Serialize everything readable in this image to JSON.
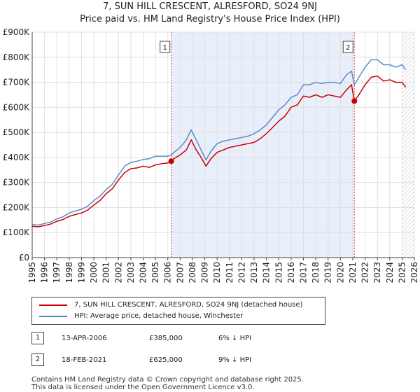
{
  "title_line1": "7, SUN HILL CRESCENT, ALRESFORD, SO24 9NJ",
  "title_line2": "Price paid vs. HM Land Registry's House Price Index (HPI)",
  "legend": {
    "property_label": "7, SUN HILL CRESCENT, ALRESFORD, SO24 9NJ (detached house)",
    "hpi_label": "HPI: Average price, detached house, Winchester"
  },
  "transactions": [
    {
      "num": "1",
      "date": "13-APR-2006",
      "price": "£385,000",
      "hpi_diff": "6% ↓ HPI"
    },
    {
      "num": "2",
      "date": "18-FEB-2021",
      "price": "£625,000",
      "hpi_diff": "9% ↓ HPI"
    }
  ],
  "footer_line1": "Contains HM Land Registry data © Crown copyright and database right 2025.",
  "footer_line2": "This data is licensed under the Open Government Licence v3.0.",
  "colors": {
    "property": "#cc0000",
    "hpi": "#5b8cc8",
    "shade": "#e8eefa",
    "marker_line": "#dd4444"
  },
  "chart_data": {
    "type": "line",
    "title": "7, SUN HILL CRESCENT, ALRESFORD, SO24 9NJ — Price paid vs. HM Land Registry's House Price Index (HPI)",
    "xlabel": "",
    "ylabel": "",
    "xlim": [
      1995,
      2026
    ],
    "ylim": [
      0,
      900000
    ],
    "x_ticks": [
      1995,
      1996,
      1997,
      1998,
      1999,
      2000,
      2001,
      2002,
      2003,
      2004,
      2005,
      2006,
      2007,
      2008,
      2009,
      2010,
      2011,
      2012,
      2013,
      2014,
      2015,
      2016,
      2017,
      2018,
      2019,
      2020,
      2021,
      2022,
      2023,
      2024,
      2025,
      2026
    ],
    "y_ticks": [
      0,
      100000,
      200000,
      300000,
      400000,
      500000,
      600000,
      700000,
      800000,
      900000
    ],
    "y_tick_labels": [
      "£0",
      "£100K",
      "£200K",
      "£300K",
      "£400K",
      "£500K",
      "£600K",
      "£700K",
      "£800K",
      "£900K"
    ],
    "grid": true,
    "legend_position": "below",
    "shaded_region": [
      2006.28,
      2021.13
    ],
    "projection_start": 2025.0,
    "annotations": [
      {
        "label": "1",
        "x": 2006.28,
        "y": 385000
      },
      {
        "label": "2",
        "x": 2021.13,
        "y": 625000
      }
    ],
    "series": [
      {
        "name": "7, SUN HILL CRESCENT, ALRESFORD, SO24 9NJ (detached house)",
        "x": [
          1995.0,
          1995.5,
          1996.0,
          1996.5,
          1997.0,
          1997.5,
          1998.0,
          1998.5,
          1999.0,
          1999.5,
          2000.0,
          2000.5,
          2001.0,
          2001.5,
          2002.0,
          2002.5,
          2003.0,
          2003.5,
          2004.0,
          2004.5,
          2005.0,
          2005.5,
          2006.0,
          2006.28,
          2006.5,
          2007.0,
          2007.5,
          2007.9,
          2008.3,
          2008.7,
          2009.1,
          2009.5,
          2010.0,
          2010.5,
          2011.0,
          2011.5,
          2012.0,
          2012.5,
          2013.0,
          2013.5,
          2014.0,
          2014.5,
          2015.0,
          2015.5,
          2016.0,
          2016.5,
          2017.0,
          2017.5,
          2018.0,
          2018.5,
          2019.0,
          2019.5,
          2020.0,
          2020.5,
          2020.9,
          2021.13,
          2021.5,
          2022.0,
          2022.5,
          2023.0,
          2023.5,
          2024.0,
          2024.5,
          2025.0,
          2025.3
        ],
        "values": [
          125000,
          123000,
          128000,
          134000,
          145000,
          152000,
          165000,
          172000,
          178000,
          190000,
          210000,
          228000,
          255000,
          275000,
          310000,
          340000,
          355000,
          358000,
          365000,
          360000,
          370000,
          375000,
          378000,
          385000,
          395000,
          410000,
          430000,
          470000,
          430000,
          400000,
          365000,
          395000,
          420000,
          430000,
          440000,
          445000,
          450000,
          455000,
          460000,
          475000,
          495000,
          520000,
          545000,
          565000,
          600000,
          610000,
          645000,
          640000,
          650000,
          640000,
          650000,
          645000,
          640000,
          670000,
          690000,
          625000,
          650000,
          690000,
          720000,
          725000,
          705000,
          710000,
          700000,
          700000,
          680000
        ]
      },
      {
        "name": "HPI: Average price, detached house, Winchester",
        "x": [
          1995.0,
          1995.5,
          1996.0,
          1996.5,
          1997.0,
          1997.5,
          1998.0,
          1998.5,
          1999.0,
          1999.5,
          2000.0,
          2000.5,
          2001.0,
          2001.5,
          2002.0,
          2002.5,
          2003.0,
          2003.5,
          2004.0,
          2004.5,
          2005.0,
          2005.5,
          2006.0,
          2006.28,
          2006.5,
          2007.0,
          2007.5,
          2007.9,
          2008.3,
          2008.7,
          2009.1,
          2009.5,
          2010.0,
          2010.5,
          2011.0,
          2011.5,
          2012.0,
          2012.5,
          2013.0,
          2013.5,
          2014.0,
          2014.5,
          2015.0,
          2015.5,
          2016.0,
          2016.5,
          2017.0,
          2017.5,
          2018.0,
          2018.5,
          2019.0,
          2019.5,
          2020.0,
          2020.5,
          2020.9,
          2021.13,
          2021.5,
          2022.0,
          2022.5,
          2023.0,
          2023.5,
          2024.0,
          2024.5,
          2025.0,
          2025.3
        ],
        "values": [
          132000,
          130000,
          136000,
          142000,
          155000,
          163000,
          178000,
          186000,
          193000,
          205000,
          228000,
          245000,
          272000,
          293000,
          330000,
          365000,
          380000,
          385000,
          392000,
          395000,
          405000,
          405000,
          405000,
          410000,
          420000,
          440000,
          470000,
          510000,
          470000,
          430000,
          390000,
          425000,
          455000,
          465000,
          470000,
          475000,
          480000,
          485000,
          495000,
          510000,
          530000,
          560000,
          590000,
          610000,
          640000,
          650000,
          690000,
          690000,
          700000,
          695000,
          700000,
          700000,
          695000,
          730000,
          745000,
          690000,
          720000,
          760000,
          790000,
          790000,
          770000,
          770000,
          760000,
          770000,
          750000
        ]
      }
    ]
  }
}
